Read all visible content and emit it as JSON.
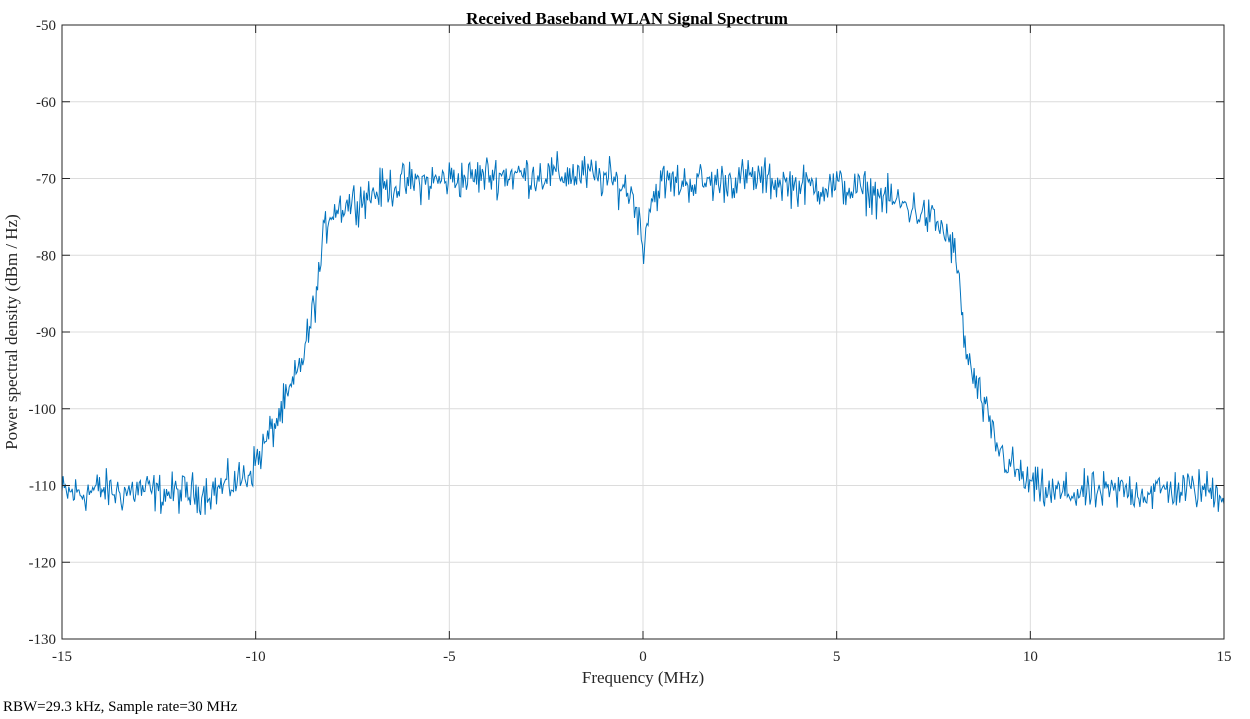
{
  "chart_data": {
    "type": "line",
    "title": "Received Baseband WLAN Signal Spectrum",
    "xlabel": "Frequency (MHz)",
    "ylabel": "Power spectral density (dBm / Hz)",
    "xlim": [
      -15,
      15
    ],
    "ylim": [
      -130,
      -50
    ],
    "xticks": [
      -15,
      -10,
      -5,
      0,
      5,
      10,
      15
    ],
    "yticks": [
      -130,
      -120,
      -110,
      -100,
      -90,
      -80,
      -70,
      -60,
      -50
    ],
    "grid": true,
    "legend": "none",
    "series": [
      {
        "color": "#0072BD",
        "x": [
          -15,
          -14.5,
          -14,
          -13.5,
          -13,
          -12.5,
          -12,
          -11.5,
          -11,
          -10.5,
          -10.2,
          -10,
          -9.8,
          -9.5,
          -9.2,
          -9,
          -8.8,
          -8.6,
          -8.4,
          -8.3,
          -8.2,
          -8.1,
          -8,
          -7.5,
          -7,
          -6.5,
          -6,
          -5.5,
          -5,
          -4.5,
          -4,
          -3.5,
          -3,
          -2.5,
          -2,
          -1.5,
          -1,
          -0.5,
          -0.3,
          -0.15,
          0,
          0.15,
          0.3,
          0.5,
          1,
          1.5,
          2,
          2.5,
          3,
          3.5,
          4,
          4.5,
          5,
          5.5,
          6,
          6.5,
          7,
          7.5,
          7.8,
          8,
          8.1,
          8.2,
          8.3,
          8.4,
          8.6,
          8.8,
          9,
          9.2,
          9.5,
          9.8,
          10,
          10.2,
          10.5,
          11,
          11.5,
          12,
          12.5,
          13,
          13.5,
          14,
          14.5,
          15
        ],
        "y": [
          -111,
          -111,
          -110.5,
          -111,
          -110.5,
          -111,
          -111,
          -111,
          -110.5,
          -109.5,
          -108.5,
          -107,
          -105,
          -102,
          -99,
          -96.5,
          -93.5,
          -89.5,
          -84,
          -80,
          -76.5,
          -74.5,
          -74,
          -73,
          -72,
          -71,
          -70.5,
          -70.5,
          -70,
          -70,
          -69.5,
          -69.5,
          -69.5,
          -69.5,
          -69.5,
          -69.5,
          -70,
          -71,
          -72,
          -74,
          -79,
          -74,
          -72,
          -70.5,
          -70.5,
          -70.5,
          -70.5,
          -70,
          -70,
          -70.5,
          -71,
          -71,
          -71,
          -71.5,
          -72,
          -73,
          -74,
          -75.5,
          -77,
          -79,
          -81,
          -86,
          -91,
          -94,
          -97,
          -100,
          -103,
          -105.5,
          -107.5,
          -109,
          -110,
          -110.5,
          -111,
          -111,
          -111,
          -111,
          -110.5,
          -111,
          -110.5,
          -110.5,
          -110.5,
          -111
        ]
      }
    ]
  },
  "note": "RBW=29.3 kHz, Sample rate=30 MHz"
}
